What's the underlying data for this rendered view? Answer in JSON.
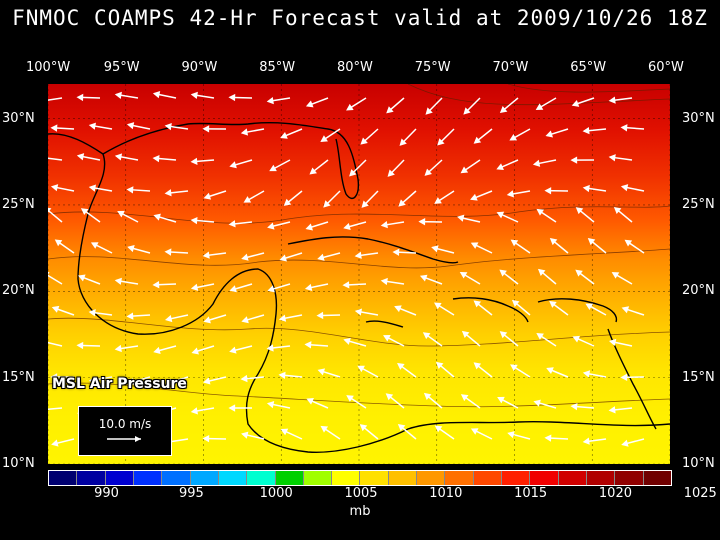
{
  "title": "FNMOC COAMPS 42-Hr Forecast valid at 2009/10/26 18Z",
  "field_label": "MSL Air Pressure",
  "wind_legend": {
    "speed_label": "10.0 m/s"
  },
  "longitude_labels": [
    "100°W",
    "95°W",
    "90°W",
    "85°W",
    "80°W",
    "75°W",
    "70°W",
    "65°W",
    "60°W"
  ],
  "longitude_values": [
    -100,
    -95,
    -90,
    -85,
    -80,
    -75,
    -70,
    -65,
    -60
  ],
  "latitude_labels": [
    "30°N",
    "25°N",
    "20°N",
    "15°N",
    "10°N"
  ],
  "latitude_values": [
    30,
    25,
    20,
    15,
    10
  ],
  "map_extent": {
    "lon_min": -100,
    "lon_max": -60,
    "lat_min": 10,
    "lat_max": 32
  },
  "colorbar": {
    "colors": [
      "#000070",
      "#0000a0",
      "#0000d0",
      "#0030ff",
      "#0070ff",
      "#00a8ff",
      "#00d8ff",
      "#00ffd0",
      "#00d000",
      "#a0ff00",
      "#ffff00",
      "#ffe000",
      "#ffc000",
      "#ff9800",
      "#ff7000",
      "#ff4800",
      "#ff2000",
      "#f00000",
      "#d00000",
      "#b00000",
      "#900000",
      "#700000"
    ],
    "tick_labels": [
      "990",
      "995",
      "1000",
      "1005",
      "1010",
      "1015",
      "1020",
      "1025"
    ],
    "units": "mb"
  }
}
